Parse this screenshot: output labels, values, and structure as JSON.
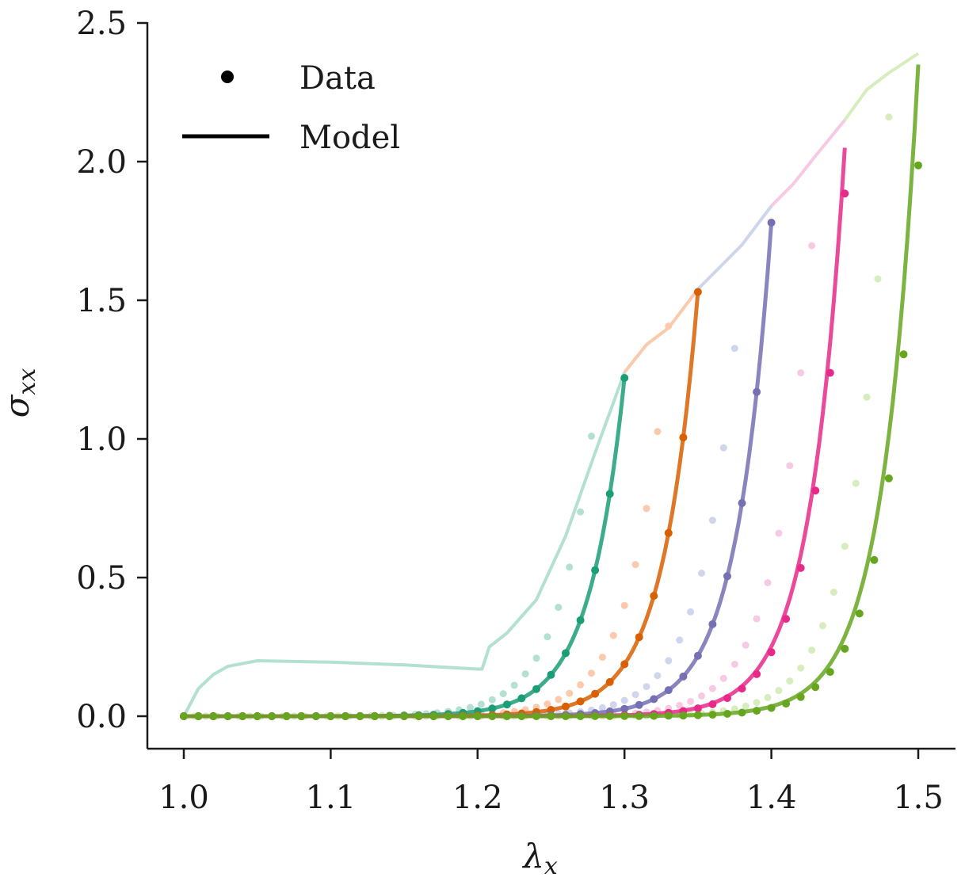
{
  "chart_data": {
    "type": "line",
    "title": "",
    "xlabel": "λ",
    "xlabel_sub": "x",
    "ylabel": "σ",
    "ylabel_sub": "xx",
    "xlim": [
      0.975,
      1.525
    ],
    "ylim": [
      -0.11,
      2.52
    ],
    "xticks": [
      1.0,
      1.1,
      1.2,
      1.3,
      1.4,
      1.5
    ],
    "xtick_labels": [
      "1.0",
      "1.1",
      "1.2",
      "1.3",
      "1.4",
      "1.5"
    ],
    "yticks": [
      0.0,
      0.5,
      1.0,
      1.5,
      2.0,
      2.5
    ],
    "ytick_labels": [
      "0.0",
      "0.5",
      "1.0",
      "1.5",
      "2.0",
      "2.5"
    ],
    "grid": false,
    "legend": {
      "position": "top-left",
      "entries": [
        {
          "label": "Data",
          "marker": "dot"
        },
        {
          "label": "Model",
          "marker": "line"
        }
      ]
    },
    "series": [
      {
        "color": "#1b9e77",
        "light_color": "#b3e0d2",
        "max_stretch": 1.3,
        "max_stress": 1.22,
        "data_offset": 0.0
      },
      {
        "color": "#d95f02",
        "light_color": "#fcc9ad",
        "max_stretch": 1.35,
        "max_stress": 1.53,
        "data_offset": 0.0
      },
      {
        "color": "#7570b3",
        "light_color": "#cfd6ec",
        "max_stretch": 1.4,
        "max_stress": 1.78,
        "data_offset": 0.0
      },
      {
        "color": "#e7298a",
        "light_color": "#f8c9e3",
        "max_stretch": 1.45,
        "max_stress": 2.05,
        "data_offset": -0.002
      },
      {
        "color": "#66a61e",
        "light_color": "#d6edbd",
        "max_stretch": 1.5,
        "max_stress": 2.35,
        "data_offset": -0.004
      }
    ],
    "loading_curve": [
      [
        1.0,
        0.0
      ],
      [
        1.005,
        0.05
      ],
      [
        1.01,
        0.1
      ],
      [
        1.02,
        0.15
      ],
      [
        1.03,
        0.18
      ],
      [
        1.05,
        0.2
      ],
      [
        1.1,
        0.195
      ],
      [
        1.15,
        0.185
      ],
      [
        1.2,
        0.17
      ],
      [
        1.203,
        0.17
      ],
      [
        1.208,
        0.25
      ],
      [
        1.22,
        0.3
      ],
      [
        1.24,
        0.42
      ],
      [
        1.26,
        0.65
      ],
      [
        1.28,
        0.95
      ],
      [
        1.3,
        1.24
      ],
      [
        1.315,
        1.34
      ],
      [
        1.33,
        1.4
      ],
      [
        1.35,
        1.54
      ],
      [
        1.365,
        1.62
      ],
      [
        1.38,
        1.7
      ],
      [
        1.4,
        1.84
      ],
      [
        1.415,
        1.92
      ],
      [
        1.43,
        2.02
      ],
      [
        1.45,
        2.15
      ],
      [
        1.465,
        2.26
      ],
      [
        1.48,
        2.32
      ],
      [
        1.5,
        2.39
      ]
    ]
  }
}
